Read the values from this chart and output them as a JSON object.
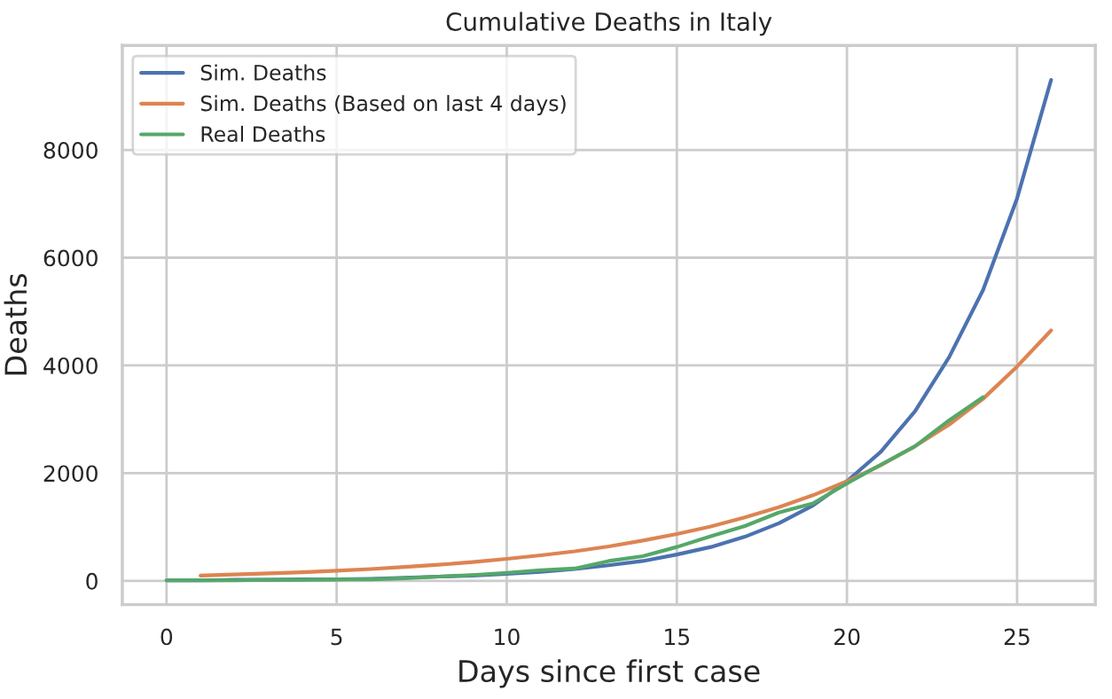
{
  "chart_data": {
    "type": "line",
    "title": "Cumulative Deaths in Italy",
    "xlabel": "Days since first case",
    "ylabel": "Deaths",
    "series": [
      {
        "name": "Sim. Deaths",
        "color": "#4c72b0",
        "x": [
          0,
          1,
          2,
          3,
          4,
          5,
          6,
          7,
          8,
          9,
          10,
          11,
          12,
          13,
          14,
          15,
          16,
          17,
          18,
          19,
          20,
          21,
          22,
          23,
          24,
          25,
          26
        ],
        "values": [
          10,
          10,
          20,
          20,
          30,
          30,
          40,
          60,
          80,
          100,
          130,
          170,
          220,
          290,
          370,
          490,
          630,
          820,
          1070,
          1400,
          1850,
          2400,
          3150,
          4150,
          5400,
          7100,
          9300
        ]
      },
      {
        "name": "Sim. Deaths (Based on last 4 days)",
        "color": "#dd8452",
        "x": [
          1,
          2,
          3,
          4,
          5,
          6,
          7,
          8,
          9,
          10,
          11,
          12,
          13,
          14,
          15,
          16,
          17,
          18,
          19,
          20,
          21,
          22,
          23,
          24,
          25,
          26
        ],
        "values": [
          100,
          120,
          140,
          160,
          190,
          220,
          260,
          300,
          350,
          410,
          475,
          550,
          640,
          750,
          870,
          1010,
          1180,
          1370,
          1590,
          1850,
          2150,
          2500,
          2900,
          3380,
          3980,
          4650
        ]
      },
      {
        "name": "Real Deaths",
        "color": "#55a868",
        "x": [
          0,
          1,
          2,
          3,
          4,
          5,
          6,
          7,
          8,
          9,
          10,
          11,
          12,
          13,
          14,
          15,
          16,
          17,
          18,
          19,
          20,
          21,
          22,
          23,
          24
        ],
        "values": [
          10,
          10,
          10,
          20,
          20,
          30,
          30,
          50,
          80,
          110,
          150,
          200,
          230,
          370,
          460,
          630,
          830,
          1020,
          1270,
          1440,
          1810,
          2160,
          2500,
          2980,
          3410
        ]
      }
    ],
    "xlim": [
      -1.3,
      27.3
    ],
    "ylim": [
      -440,
      9940
    ],
    "xticks": [
      0,
      5,
      10,
      15,
      20,
      25
    ],
    "yticks": [
      0,
      2000,
      4000,
      6000,
      8000
    ],
    "grid": true,
    "legend": "top left"
  }
}
